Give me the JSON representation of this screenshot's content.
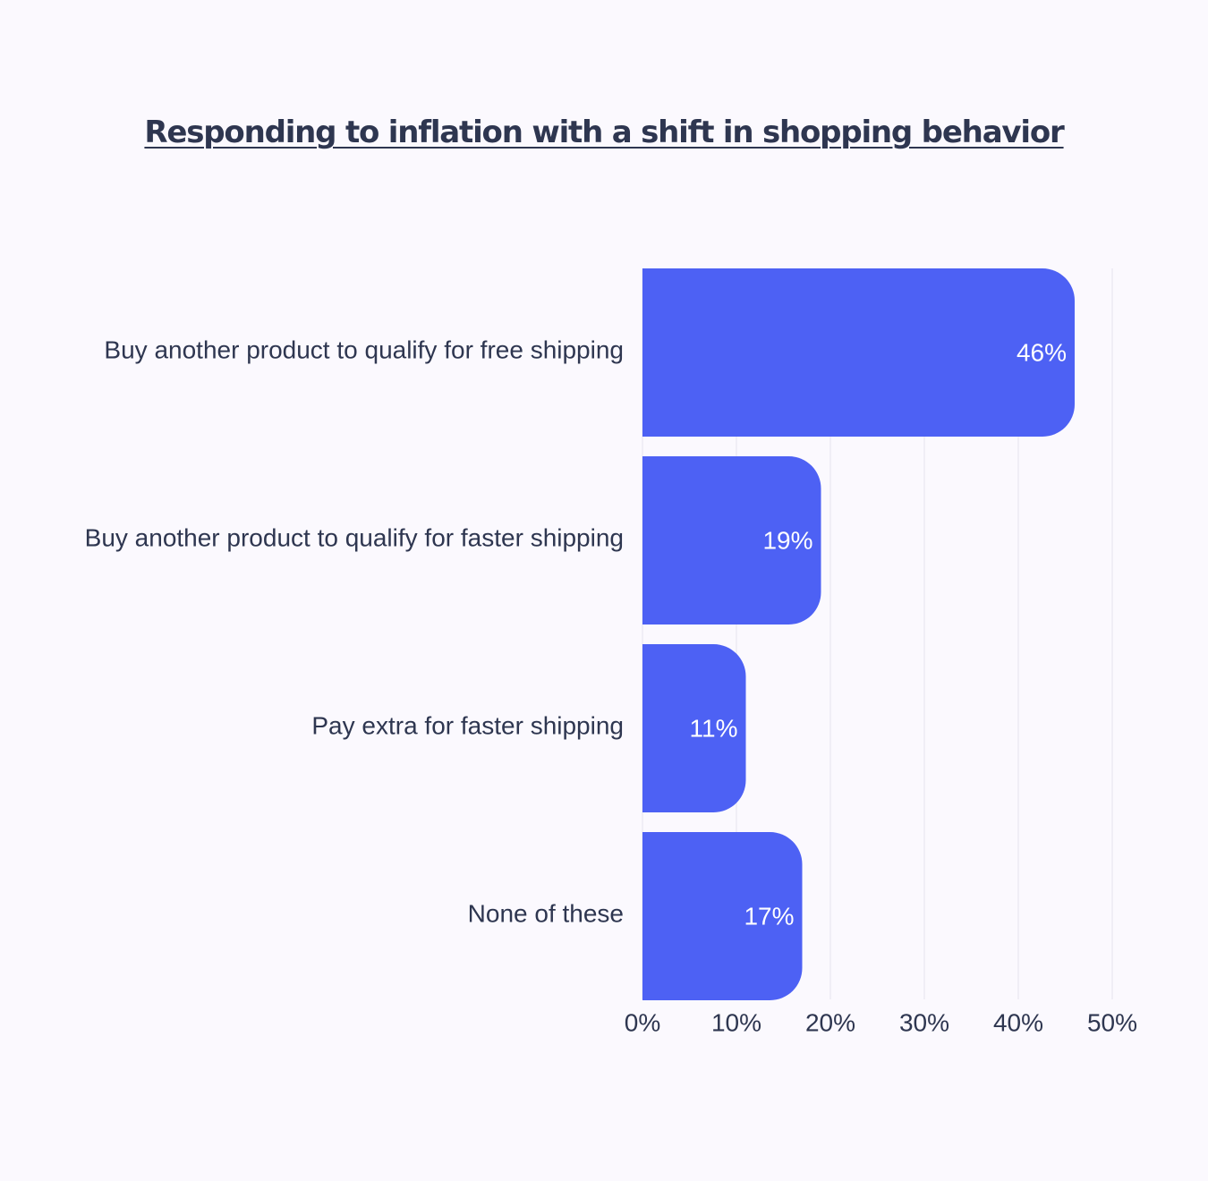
{
  "colors": {
    "bar": "#4d61f4",
    "text": "#2e3650",
    "value_text": "#ffffff",
    "grid": "#e6e4ee",
    "background": "#fbf9fe"
  },
  "chart_data": {
    "type": "bar",
    "orientation": "horizontal",
    "title": "Responding to inflation with a shift in shopping behavior",
    "categories": [
      "Buy another product to qualify for free shipping",
      "Buy another product to qualify for faster shipping",
      "Pay extra for faster shipping",
      "None of these"
    ],
    "values": [
      46,
      19,
      11,
      17
    ],
    "value_labels": [
      "46%",
      "19%",
      "11%",
      "17%"
    ],
    "x_ticks": [
      "0%",
      "10%",
      "20%",
      "30%",
      "40%",
      "50%"
    ],
    "xlim": [
      0,
      50
    ],
    "grid": true,
    "legend": "none"
  }
}
